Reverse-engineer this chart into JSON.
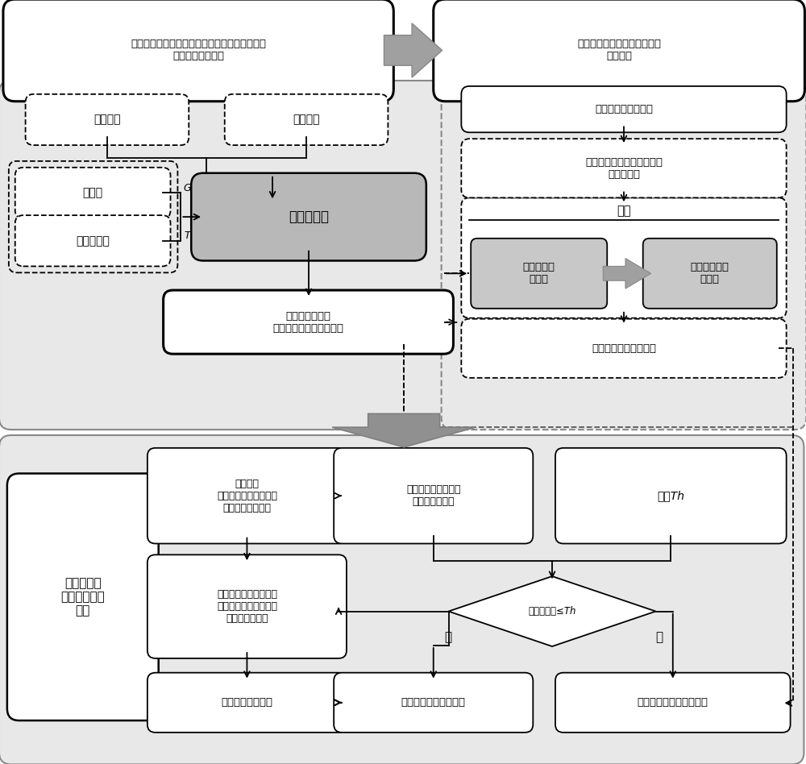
{
  "fig_width": 10.0,
  "fig_height": 9.48,
  "top_left_title": "采用双迭代算法提取特定辐照度和温度条件下的\n单二极管模型参数",
  "top_right_title": "将最近邻条件下参数值转换到\n未知条件",
  "left_box1": "数据手册",
  "left_box2": "实测曲线",
  "left_box3": "辐照度",
  "left_box4": "电池片温度",
  "left_center_box": "双迭代算法",
  "left_bottom_box": "特定测试条件下\n单二极管模型五参数数值",
  "right_box1": "未知模型参数的条件",
  "right_box2": "依据归一化距离在网格点中\n寻找最近邻",
  "right_box3_title": "基准",
  "right_box3a": "标准条件下\n参数值",
  "right_box3b": "最近邻条件下\n参数值",
  "right_box4": "未知条件下模型参数值",
  "bottom_left_label": "距离加权的\n改进参数估计\n方法",
  "bottom_box1": "在网格点\n中寻找距离未知条件最\n近的两个测试条件",
  "bottom_box2": "计算它们与未知条件\n之间距离平方差",
  "bottom_box3": "阈值Th",
  "bottom_box4": "分别以这两个条件下提\n取的参数值作为基准，\n计算模型参数值",
  "bottom_diamond": "距离平方差≤Th",
  "bottom_yes": "是",
  "bottom_no": "否",
  "bottom_box5": "模拟电流电压曲线",
  "bottom_box6": "引入距离加权后的结果",
  "bottom_box7": "基于最近邻条件转换参数",
  "label_G": "G",
  "label_T": "T",
  "panel_bg": "#e8e8e8",
  "panel_edge": "#888888",
  "gray_box": "#b8b8b8",
  "gray_box2": "#c8c8c8",
  "arrow_gray": "#909090"
}
